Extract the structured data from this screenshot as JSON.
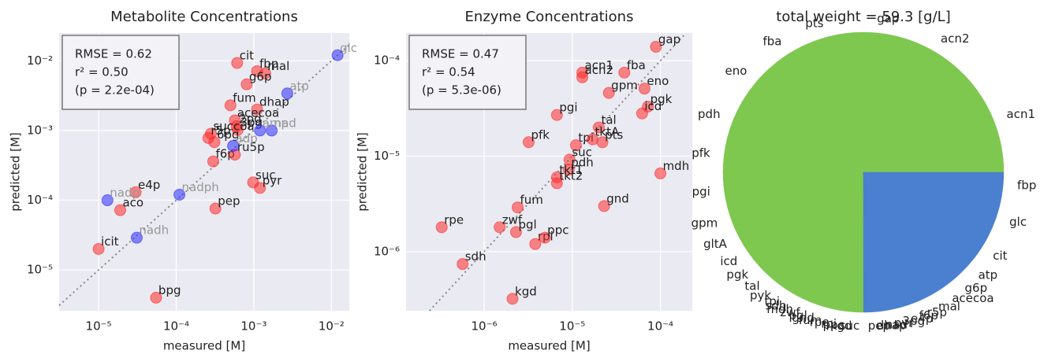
{
  "chart_data": [
    {
      "type": "scatter",
      "title": "Metabolite Concentrations",
      "x_label": "measured [M]",
      "y_label": "predicted [M]",
      "annotation": [
        "RMSE = 0.62",
        "r² = 0.50",
        "(p = 2.2e-04)"
      ],
      "xlog": true,
      "ylog": true,
      "grid": true,
      "xlim": [
        3.1e-06,
        0.017
      ],
      "ylim": [
        2.6e-06,
        0.025
      ],
      "xticks": [
        {
          "value": 1e-05,
          "label": "10⁻⁵"
        },
        {
          "value": 0.0001,
          "label": "10⁻⁴"
        },
        {
          "value": 0.001,
          "label": "10⁻³"
        },
        {
          "value": 0.01,
          "label": "10⁻²"
        }
      ],
      "yticks": [
        {
          "value": 1e-05,
          "label": "10⁻⁵"
        },
        {
          "value": 0.0001,
          "label": "10⁻⁴"
        },
        {
          "value": 0.001,
          "label": "10⁻³"
        },
        {
          "value": 0.01,
          "label": "10⁻²"
        }
      ],
      "series": [
        {
          "color": "#ff2a2a",
          "label_color": "#222222",
          "labels": [
            "cit",
            "fbp",
            "mal",
            "g6p",
            "fum",
            "dhap",
            "acecoa",
            "2pg",
            "3pg",
            "succoa",
            "r5p",
            "6pg",
            "f6p",
            "ru5p",
            "suc",
            "pyr",
            "e4p",
            "aco",
            "pep",
            "icit",
            "bpg"
          ],
          "x": [
            0.00061,
            0.0011,
            0.0014,
            0.00081,
            0.0005,
            0.0011,
            0.00057,
            0.0006,
            0.00062,
            0.00028,
            0.00026,
            0.00031,
            0.0003,
            0.00057,
            0.00098,
            0.0012,
            3e-05,
            1.9e-05,
            0.00032,
            1e-05,
            5.5e-05
          ],
          "values": [
            0.0093,
            0.0071,
            0.0066,
            0.0046,
            0.0023,
            0.002,
            0.0014,
            0.00115,
            0.00102,
            0.0009,
            0.00078,
            0.00068,
            0.00036,
            0.00045,
            0.00018,
            0.00015,
            0.00013,
            7.2e-05,
            7.6e-05,
            2e-05,
            4e-06
          ]
        },
        {
          "color": "#2a2aff",
          "label_color": "#999999",
          "labels": [
            "glc",
            "atp",
            "nad",
            "amp",
            "adp",
            "nadph",
            "nadp",
            "nadh"
          ],
          "x": [
            0.012,
            0.0027,
            0.0017,
            0.0012,
            0.00054,
            0.00011,
            1.3e-05,
            3.1e-05
          ],
          "values": [
            0.012,
            0.0034,
            0.001,
            0.001,
            0.0006,
            0.00012,
            0.0001,
            2.9e-05
          ]
        }
      ]
    },
    {
      "type": "scatter",
      "title": "Enzyme Concentrations",
      "x_label": "measured [M]",
      "y_label": "predicted [M]",
      "annotation": [
        "RMSE = 0.47",
        "r² = 0.54",
        "(p = 5.3e-06)"
      ],
      "xlog": true,
      "ylog": true,
      "grid": true,
      "xlim": [
        1.3e-07,
        0.00023
      ],
      "ylim": [
        2.4e-07,
        0.000195
      ],
      "xticks": [
        {
          "value": 1e-06,
          "label": "10⁻⁶"
        },
        {
          "value": 1e-05,
          "label": "10⁻⁵"
        },
        {
          "value": 0.0001,
          "label": "10⁻⁴"
        }
      ],
      "yticks": [
        {
          "value": 1e-06,
          "label": "10⁻⁶"
        },
        {
          "value": 1e-05,
          "label": "10⁻⁵"
        },
        {
          "value": 0.0001,
          "label": "10⁻⁴"
        }
      ],
      "series": [
        {
          "color": "#ff2a2a",
          "label_color": "#222222",
          "labels": [
            "gap",
            "acn1",
            "acn2",
            "fba",
            "eno",
            "gpm",
            "pgk",
            "icd",
            "pgi",
            "tal",
            "pfk",
            "tpi",
            "tktA",
            "pts",
            "suc",
            "pdh",
            "tkt1",
            "tkt2",
            "mdh",
            "gnd",
            "fum",
            "rpe",
            "zwf",
            "pgl",
            "rpi",
            "ppc",
            "sdh",
            "kgd"
          ],
          "x": [
            8.9e-05,
            1.3e-05,
            1.3e-05,
            3.9e-05,
            6.6e-05,
            2.6e-05,
            7.2e-05,
            6.2e-05,
            6.7e-06,
            2e-05,
            3.2e-06,
            1.1e-05,
            1.7e-05,
            2.2e-05,
            9.3e-06,
            9.1e-06,
            6.7e-06,
            6.7e-06,
            0.0001,
            2.3e-05,
            2.4e-06,
            3.3e-07,
            1.5e-06,
            2.3e-06,
            3.8e-06,
            4.9e-06,
            5.7e-07,
            2.1e-06
          ],
          "values": [
            0.00014,
            7.5e-05,
            6.7e-05,
            7.5e-05,
            5.1e-05,
            4.6e-05,
            3.3e-05,
            2.8e-05,
            2.7e-05,
            2e-05,
            1.4e-05,
            1.3e-05,
            1.5e-05,
            1.4e-05,
            9.2e-06,
            7.2e-06,
            6e-06,
            5.2e-06,
            6.6e-06,
            3e-06,
            2.9e-06,
            1.8e-06,
            1.8e-06,
            1.6e-06,
            1.2e-06,
            1.4e-06,
            7.4e-07,
            3.2e-07
          ]
        }
      ]
    },
    {
      "type": "pie",
      "title": "total weight = 59.3 [g/L]",
      "categories": [
        "acn1",
        "acn2",
        "gap",
        "pts",
        "fba",
        "eno",
        "pdh",
        "pfk",
        "pgi",
        "gpm",
        "gltA",
        "icd",
        "pgk",
        "tal",
        "pyk",
        "tpi",
        "sdh",
        "mdh",
        "zwf",
        "pgl",
        "gnd",
        "fum",
        "rpe",
        "rpi",
        "ppc",
        "kgd",
        "suc",
        "pep",
        "dhap",
        "nad",
        "pyr",
        "3pg",
        "e4p",
        "f6p",
        "r5p",
        "mal",
        "acecoa",
        "g6p",
        "atp",
        "cit",
        "glc",
        "fbp"
      ],
      "values": [
        7.25,
        5.27,
        2.97,
        3.62,
        1.98,
        3.62,
        2.64,
        2.31,
        2.47,
        1.48,
        1.32,
        1.15,
        0.99,
        0.99,
        0.82,
        0.47,
        0.47,
        0.47,
        0.47,
        0.47,
        0.47,
        0.47,
        0.47,
        0.47,
        0.47,
        0.47,
        0.47,
        0.535,
        0.535,
        0.535,
        0.535,
        0.535,
        0.535,
        0.535,
        0.535,
        0.99,
        0.99,
        0.99,
        1.32,
        1.65,
        2.96,
        1.65
      ],
      "colors": [
        "#7ec850",
        "#7ec850",
        "#7ec850",
        "#7ec850",
        "#7ec850",
        "#7ec850",
        "#7ec850",
        "#7ec850",
        "#7ec850",
        "#7ec850",
        "#7ec850",
        "#7ec850",
        "#7ec850",
        "#7ec850",
        "#7ec850",
        "#7ec850",
        "#7ec850",
        "#7ec850",
        "#7ec850",
        "#7ec850",
        "#7ec850",
        "#7ec850",
        "#7ec850",
        "#7ec850",
        "#7ec850",
        "#7ec850",
        "#7ec850",
        "#4a80cf",
        "#4a80cf",
        "#4a80cf",
        "#4a80cf",
        "#4a80cf",
        "#4a80cf",
        "#4a80cf",
        "#4a80cf",
        "#4a80cf",
        "#4a80cf",
        "#4a80cf",
        "#4a80cf",
        "#4a80cf",
        "#4a80cf",
        "#4a80cf"
      ]
    }
  ]
}
